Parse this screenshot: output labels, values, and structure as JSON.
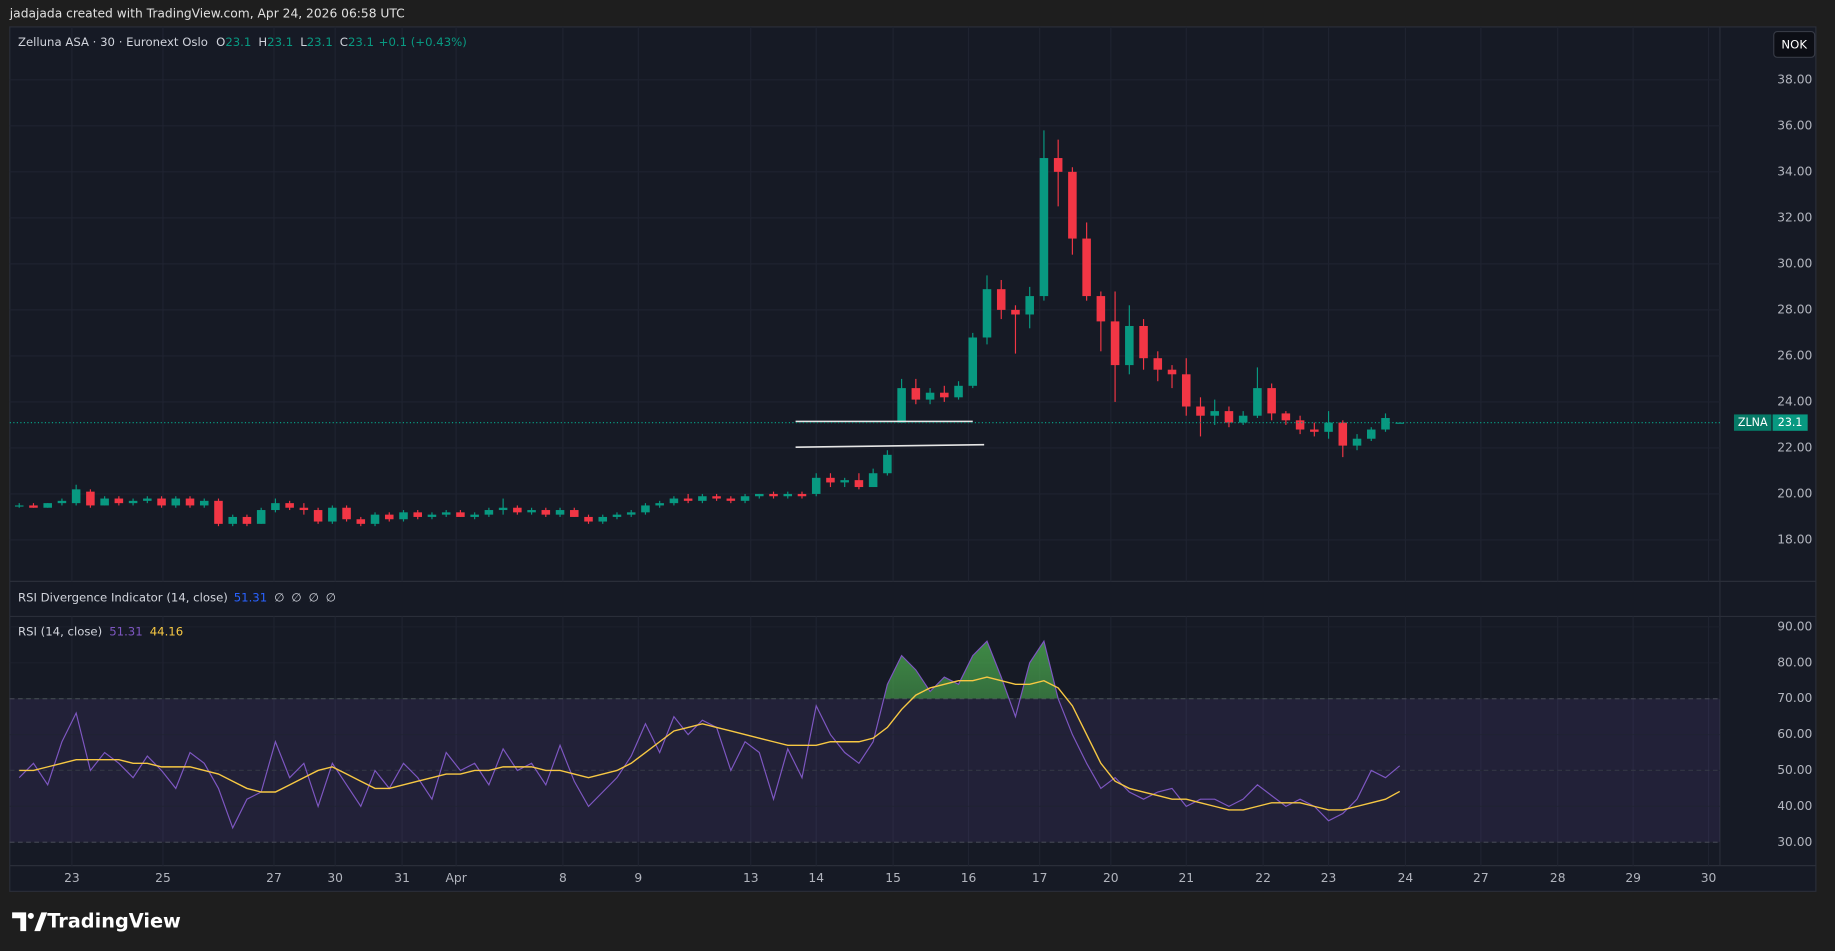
{
  "header": "jadajada created with TradingView.com, Apr 24, 2026 06:58 UTC",
  "footer_logo": "TradingView",
  "currency": "NOK",
  "chart_data": [
    {
      "type": "candlestick",
      "title": "Zelluna ASA · 30 · Euronext Oslo",
      "ohlc_labels": [
        "O",
        "H",
        "L",
        "C"
      ],
      "change": "+0.1 (+0.43%)",
      "symbol_tag": "ZLNA",
      "up_color": "#089981",
      "down_color": "#f23645",
      "ohlc": [
        [
          19.5,
          19.6,
          19.4,
          19.5
        ],
        [
          19.5,
          19.6,
          19.4,
          19.4
        ],
        [
          19.4,
          19.6,
          19.4,
          19.6
        ],
        [
          19.6,
          19.8,
          19.5,
          19.7
        ],
        [
          19.6,
          20.4,
          19.5,
          20.2
        ],
        [
          20.1,
          20.2,
          19.4,
          19.5
        ],
        [
          19.5,
          19.9,
          19.5,
          19.8
        ],
        [
          19.8,
          19.9,
          19.5,
          19.6
        ],
        [
          19.6,
          19.8,
          19.5,
          19.7
        ],
        [
          19.7,
          19.9,
          19.6,
          19.8
        ],
        [
          19.8,
          19.9,
          19.4,
          19.5
        ],
        [
          19.5,
          19.9,
          19.4,
          19.8
        ],
        [
          19.8,
          19.9,
          19.4,
          19.5
        ],
        [
          19.5,
          19.8,
          19.4,
          19.7
        ],
        [
          19.7,
          19.8,
          18.6,
          18.7
        ],
        [
          18.7,
          19.1,
          18.6,
          19.0
        ],
        [
          19.0,
          19.1,
          18.6,
          18.7
        ],
        [
          18.7,
          19.4,
          18.7,
          19.3
        ],
        [
          19.3,
          19.8,
          19.2,
          19.6
        ],
        [
          19.6,
          19.7,
          19.3,
          19.4
        ],
        [
          19.4,
          19.6,
          19.1,
          19.3
        ],
        [
          19.3,
          19.4,
          18.7,
          18.8
        ],
        [
          18.8,
          19.5,
          18.7,
          19.4
        ],
        [
          19.4,
          19.5,
          18.8,
          18.9
        ],
        [
          18.9,
          19.0,
          18.6,
          18.7
        ],
        [
          18.7,
          19.2,
          18.6,
          19.1
        ],
        [
          19.1,
          19.2,
          18.8,
          18.9
        ],
        [
          18.9,
          19.3,
          18.8,
          19.2
        ],
        [
          19.2,
          19.3,
          18.9,
          19.0
        ],
        [
          19.0,
          19.2,
          18.9,
          19.1
        ],
        [
          19.1,
          19.3,
          19.0,
          19.2
        ],
        [
          19.2,
          19.3,
          19.0,
          19.0
        ],
        [
          19.0,
          19.2,
          18.9,
          19.1
        ],
        [
          19.1,
          19.4,
          19.0,
          19.3
        ],
        [
          19.3,
          19.8,
          19.1,
          19.4
        ],
        [
          19.4,
          19.5,
          19.1,
          19.2
        ],
        [
          19.2,
          19.4,
          19.1,
          19.3
        ],
        [
          19.3,
          19.4,
          19.0,
          19.1
        ],
        [
          19.1,
          19.4,
          19.0,
          19.3
        ],
        [
          19.3,
          19.4,
          19.0,
          19.0
        ],
        [
          19.0,
          19.1,
          18.7,
          18.8
        ],
        [
          18.8,
          19.1,
          18.7,
          19.0
        ],
        [
          19.0,
          19.2,
          18.9,
          19.1
        ],
        [
          19.1,
          19.3,
          19.0,
          19.2
        ],
        [
          19.2,
          19.6,
          19.1,
          19.5
        ],
        [
          19.5,
          19.7,
          19.4,
          19.6
        ],
        [
          19.6,
          19.9,
          19.5,
          19.8
        ],
        [
          19.8,
          20.0,
          19.6,
          19.7
        ],
        [
          19.7,
          20.0,
          19.6,
          19.9
        ],
        [
          19.9,
          20.0,
          19.7,
          19.8
        ],
        [
          19.8,
          19.9,
          19.6,
          19.7
        ],
        [
          19.7,
          20.0,
          19.6,
          19.9
        ],
        [
          19.9,
          20.0,
          19.8,
          20.0
        ],
        [
          20.0,
          20.1,
          19.8,
          19.9
        ],
        [
          19.9,
          20.1,
          19.8,
          20.0
        ],
        [
          20.0,
          20.1,
          19.8,
          19.9
        ],
        [
          20.0,
          20.9,
          19.9,
          20.7
        ],
        [
          20.7,
          20.9,
          20.3,
          20.5
        ],
        [
          20.5,
          20.7,
          20.3,
          20.6
        ],
        [
          20.6,
          20.9,
          20.2,
          20.3
        ],
        [
          20.3,
          21.1,
          20.3,
          20.9
        ],
        [
          20.9,
          21.9,
          20.8,
          21.7
        ],
        [
          23.1,
          25.0,
          23.1,
          24.6
        ],
        [
          24.6,
          25.0,
          23.9,
          24.1
        ],
        [
          24.1,
          24.6,
          23.9,
          24.4
        ],
        [
          24.4,
          24.7,
          24.0,
          24.2
        ],
        [
          24.2,
          24.9,
          24.1,
          24.7
        ],
        [
          24.7,
          27.0,
          24.6,
          26.8
        ],
        [
          26.8,
          29.5,
          26.5,
          28.9
        ],
        [
          28.9,
          29.3,
          27.6,
          28.0
        ],
        [
          28.0,
          28.2,
          26.1,
          27.8
        ],
        [
          27.8,
          29.0,
          27.2,
          28.6
        ],
        [
          28.6,
          35.8,
          28.4,
          34.6
        ],
        [
          34.6,
          35.4,
          32.5,
          34.0
        ],
        [
          34.0,
          34.2,
          30.4,
          31.1
        ],
        [
          31.1,
          31.8,
          28.4,
          28.6
        ],
        [
          28.6,
          28.8,
          26.2,
          27.5
        ],
        [
          27.5,
          28.8,
          24.0,
          25.6
        ],
        [
          25.6,
          28.2,
          25.2,
          27.3
        ],
        [
          27.3,
          27.6,
          25.4,
          25.9
        ],
        [
          25.9,
          26.2,
          24.9,
          25.4
        ],
        [
          25.4,
          25.6,
          24.6,
          25.2
        ],
        [
          25.2,
          25.9,
          23.4,
          23.8
        ],
        [
          23.8,
          24.2,
          22.5,
          23.4
        ],
        [
          23.4,
          24.1,
          23.0,
          23.6
        ],
        [
          23.6,
          23.8,
          22.9,
          23.1
        ],
        [
          23.1,
          23.6,
          23.0,
          23.4
        ],
        [
          23.4,
          25.5,
          23.3,
          24.6
        ],
        [
          24.6,
          24.8,
          23.2,
          23.5
        ],
        [
          23.5,
          23.6,
          23.0,
          23.2
        ],
        [
          23.2,
          23.4,
          22.6,
          22.8
        ],
        [
          22.8,
          23.1,
          22.5,
          22.7
        ],
        [
          22.7,
          23.6,
          22.4,
          23.1
        ],
        [
          23.1,
          23.2,
          21.6,
          22.1
        ],
        [
          22.1,
          22.6,
          21.9,
          22.4
        ],
        [
          22.4,
          22.9,
          22.3,
          22.8
        ],
        [
          22.8,
          23.5,
          22.7,
          23.3
        ],
        [
          23.1,
          23.1,
          23.1,
          23.1
        ]
      ],
      "xlim": [
        0,
        120
      ],
      "xticks": [
        {
          "value": 4.2,
          "label": "23"
        },
        {
          "value": 10.6,
          "label": "25"
        },
        {
          "value": 18.4,
          "label": "27"
        },
        {
          "value": 22.7,
          "label": "30"
        },
        {
          "value": 27.4,
          "label": "31"
        },
        {
          "value": 31.2,
          "label": "Apr"
        },
        {
          "value": 38.7,
          "label": "8"
        },
        {
          "value": 44.0,
          "label": "9"
        },
        {
          "value": 51.9,
          "label": "13"
        },
        {
          "value": 56.5,
          "label": "14"
        },
        {
          "value": 61.9,
          "label": "15"
        },
        {
          "value": 67.2,
          "label": "16"
        },
        {
          "value": 72.2,
          "label": "17"
        },
        {
          "value": 77.2,
          "label": "20"
        },
        {
          "value": 82.5,
          "label": "21"
        },
        {
          "value": 87.9,
          "label": "22"
        },
        {
          "value": 92.5,
          "label": "23"
        },
        {
          "value": 97.9,
          "label": "24"
        },
        {
          "value": 103.2,
          "label": "27"
        },
        {
          "value": 108.6,
          "label": "28"
        },
        {
          "value": 113.9,
          "label": "29"
        },
        {
          "value": 119.2,
          "label": "30"
        }
      ],
      "ylim": [
        16.2,
        40.3
      ],
      "yticks": [
        {
          "value": 18,
          "label": "18.00"
        },
        {
          "value": 20,
          "label": "20.00"
        },
        {
          "value": 22,
          "label": "22.00"
        },
        {
          "value": 24,
          "label": "24.00"
        },
        {
          "value": 26,
          "label": "26.00"
        },
        {
          "value": 28,
          "label": "28.00"
        },
        {
          "value": 30,
          "label": "30.00"
        },
        {
          "value": 32,
          "label": "32.00"
        },
        {
          "value": 34,
          "label": "34.00"
        },
        {
          "value": 36,
          "label": "36.00"
        },
        {
          "value": 38,
          "label": "38.00"
        }
      ],
      "grid": true,
      "levels": [
        {
          "x": [
            55.05,
            67.5
          ],
          "y": [
            23.15,
            23.15
          ]
        },
        {
          "x": [
            55.05,
            68.3
          ],
          "y": [
            22.03,
            22.14
          ]
        }
      ]
    },
    {
      "type": "indicator",
      "title": "RSI Divergence Indicator (14, close)",
      "flags": [
        "∅",
        "∅",
        "∅",
        "∅"
      ],
      "color": "#2962ff"
    },
    {
      "type": "line",
      "title": "RSI (14, close)",
      "series": [
        {
          "color": "#7e57c2",
          "values": [
            48,
            52,
            46,
            58,
            66,
            50,
            55,
            52,
            48,
            54,
            50,
            45,
            55,
            52,
            45,
            34,
            42,
            44,
            58,
            48,
            52,
            40,
            52,
            46,
            40,
            50,
            45,
            52,
            48,
            42,
            55,
            50,
            52,
            46,
            56,
            50,
            52,
            46,
            57,
            47,
            40,
            44,
            48,
            54,
            63,
            55,
            65,
            60,
            64,
            62,
            50,
            58,
            55,
            42,
            56,
            48,
            68,
            60,
            55,
            52,
            58,
            74,
            82,
            78,
            72,
            76,
            74,
            82,
            86,
            76,
            65,
            80,
            86,
            70,
            60,
            52,
            45,
            48,
            44,
            42,
            44,
            45,
            40,
            42,
            42,
            40,
            42,
            46,
            43,
            40,
            42,
            40,
            36,
            38,
            42,
            50,
            48,
            51.31
          ]
        },
        {
          "color": "#f7c843",
          "values": [
            50,
            50,
            51,
            52,
            53,
            53,
            53,
            53,
            52,
            52,
            51,
            51,
            51,
            50,
            49,
            47,
            45,
            44,
            44,
            46,
            48,
            50,
            51,
            49,
            47,
            45,
            45,
            46,
            47,
            48,
            49,
            49,
            50,
            50,
            51,
            51,
            51,
            50,
            50,
            49,
            48,
            49,
            50,
            52,
            55,
            58,
            61,
            62,
            63,
            62,
            61,
            60,
            59,
            58,
            57,
            57,
            57,
            58,
            58,
            58,
            59,
            62,
            67,
            71,
            73,
            74,
            75,
            75,
            76,
            75,
            74,
            74,
            75,
            73,
            68,
            60,
            52,
            47,
            45,
            44,
            43,
            42,
            42,
            41,
            40,
            39,
            39,
            40,
            41,
            41,
            41,
            40,
            39,
            39,
            40,
            41,
            42,
            44.16
          ]
        }
      ],
      "ylim": [
        23.5,
        92.9
      ],
      "yticks": [
        {
          "value": 30,
          "label": "30.00"
        },
        {
          "value": 40,
          "label": "40.00"
        },
        {
          "value": 50,
          "label": "50.00"
        },
        {
          "value": 60,
          "label": "60.00"
        },
        {
          "value": 70,
          "label": "70.00"
        },
        {
          "value": 80,
          "label": "80.00"
        },
        {
          "value": 90,
          "label": "90.00"
        }
      ],
      "bands": {
        "upper": 70,
        "middle": 50,
        "lower": 30
      },
      "band_color": "#7e57c2",
      "overbought_color": "#4caf50"
    }
  ]
}
